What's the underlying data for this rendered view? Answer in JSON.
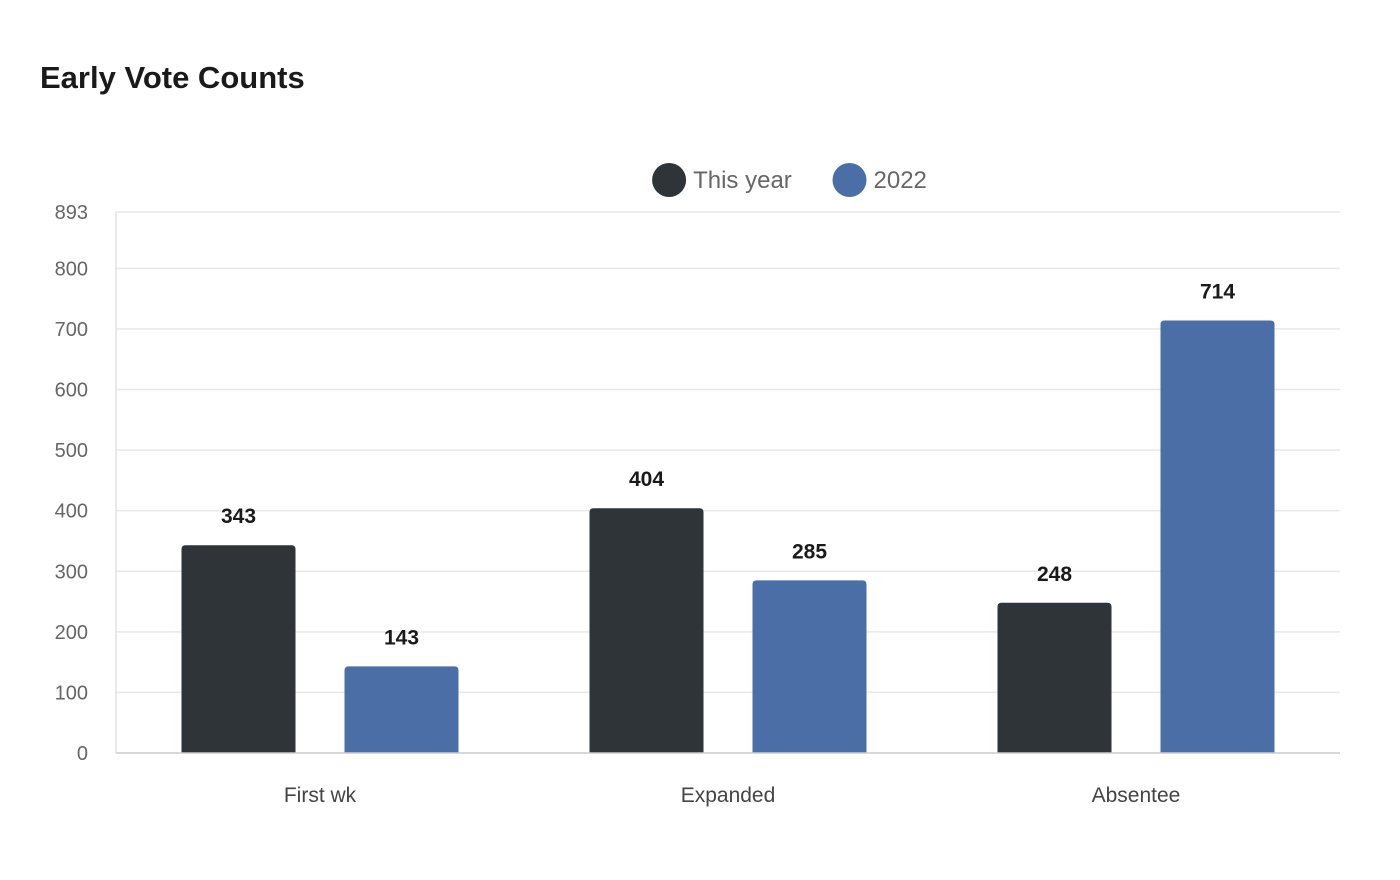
{
  "chart_data": {
    "type": "bar",
    "title": "Early Vote Counts",
    "categories": [
      "First wk",
      "Expanded",
      "Absentee"
    ],
    "series": [
      {
        "name": "This year",
        "color": "#2e3437",
        "values": [
          343,
          404,
          248
        ]
      },
      {
        "name": "2022",
        "color": "#4a6ea5",
        "values": [
          143,
          285,
          714
        ]
      }
    ],
    "ylim": [
      0,
      893
    ],
    "yticks": [
      0,
      100,
      200,
      300,
      400,
      500,
      600,
      700,
      800,
      893
    ],
    "grid": true,
    "legend": "top-center",
    "data_labels": true
  }
}
